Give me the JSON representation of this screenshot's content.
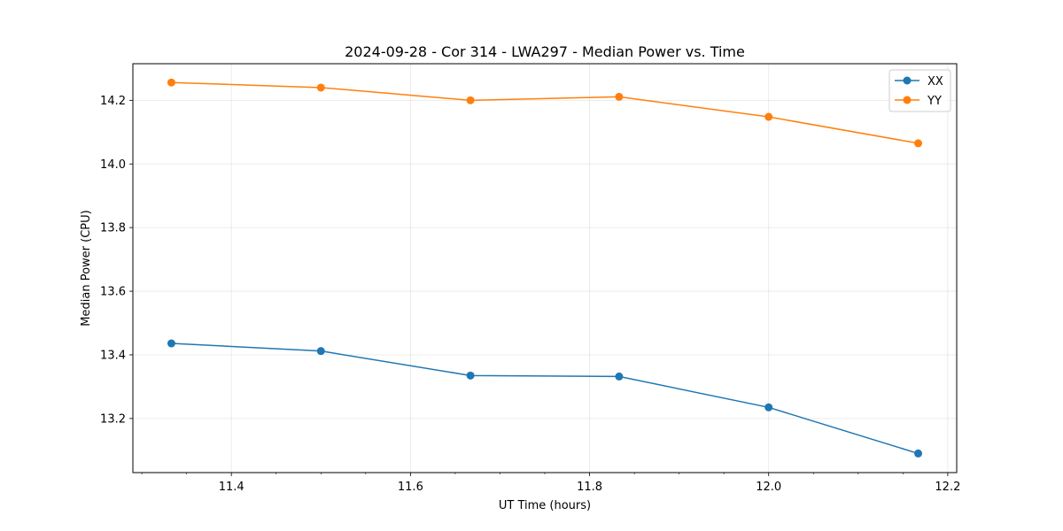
{
  "chart_data": {
    "type": "line",
    "title": "2024-09-28 - Cor 314 - LWA297 - Median Power vs. Time",
    "xlabel": "UT Time (hours)",
    "ylabel": "Median Power (CPU)",
    "xlim": [
      11.29,
      12.21
    ],
    "ylim": [
      13.03,
      14.315
    ],
    "xticks": [
      11.4,
      11.6,
      11.8,
      12.0,
      12.2
    ],
    "xtick_labels": [
      "11.4",
      "11.6",
      "11.8",
      "12.0",
      "12.2"
    ],
    "yticks": [
      13.2,
      13.4,
      13.6,
      13.8,
      14.0,
      14.2
    ],
    "ytick_labels": [
      "13.2",
      "13.4",
      "13.6",
      "13.8",
      "14.0",
      "14.2"
    ],
    "grid": true,
    "legend_position": "top-right",
    "x": [
      11.333,
      11.5,
      11.667,
      11.833,
      12.0,
      12.167
    ],
    "series": [
      {
        "name": "XX",
        "color": "#1f77b4",
        "values": [
          13.436,
          13.412,
          13.335,
          13.332,
          13.235,
          13.09
        ]
      },
      {
        "name": "YY",
        "color": "#ff7f0e",
        "values": [
          14.256,
          14.24,
          14.2,
          14.211,
          14.148,
          14.065
        ]
      }
    ]
  }
}
